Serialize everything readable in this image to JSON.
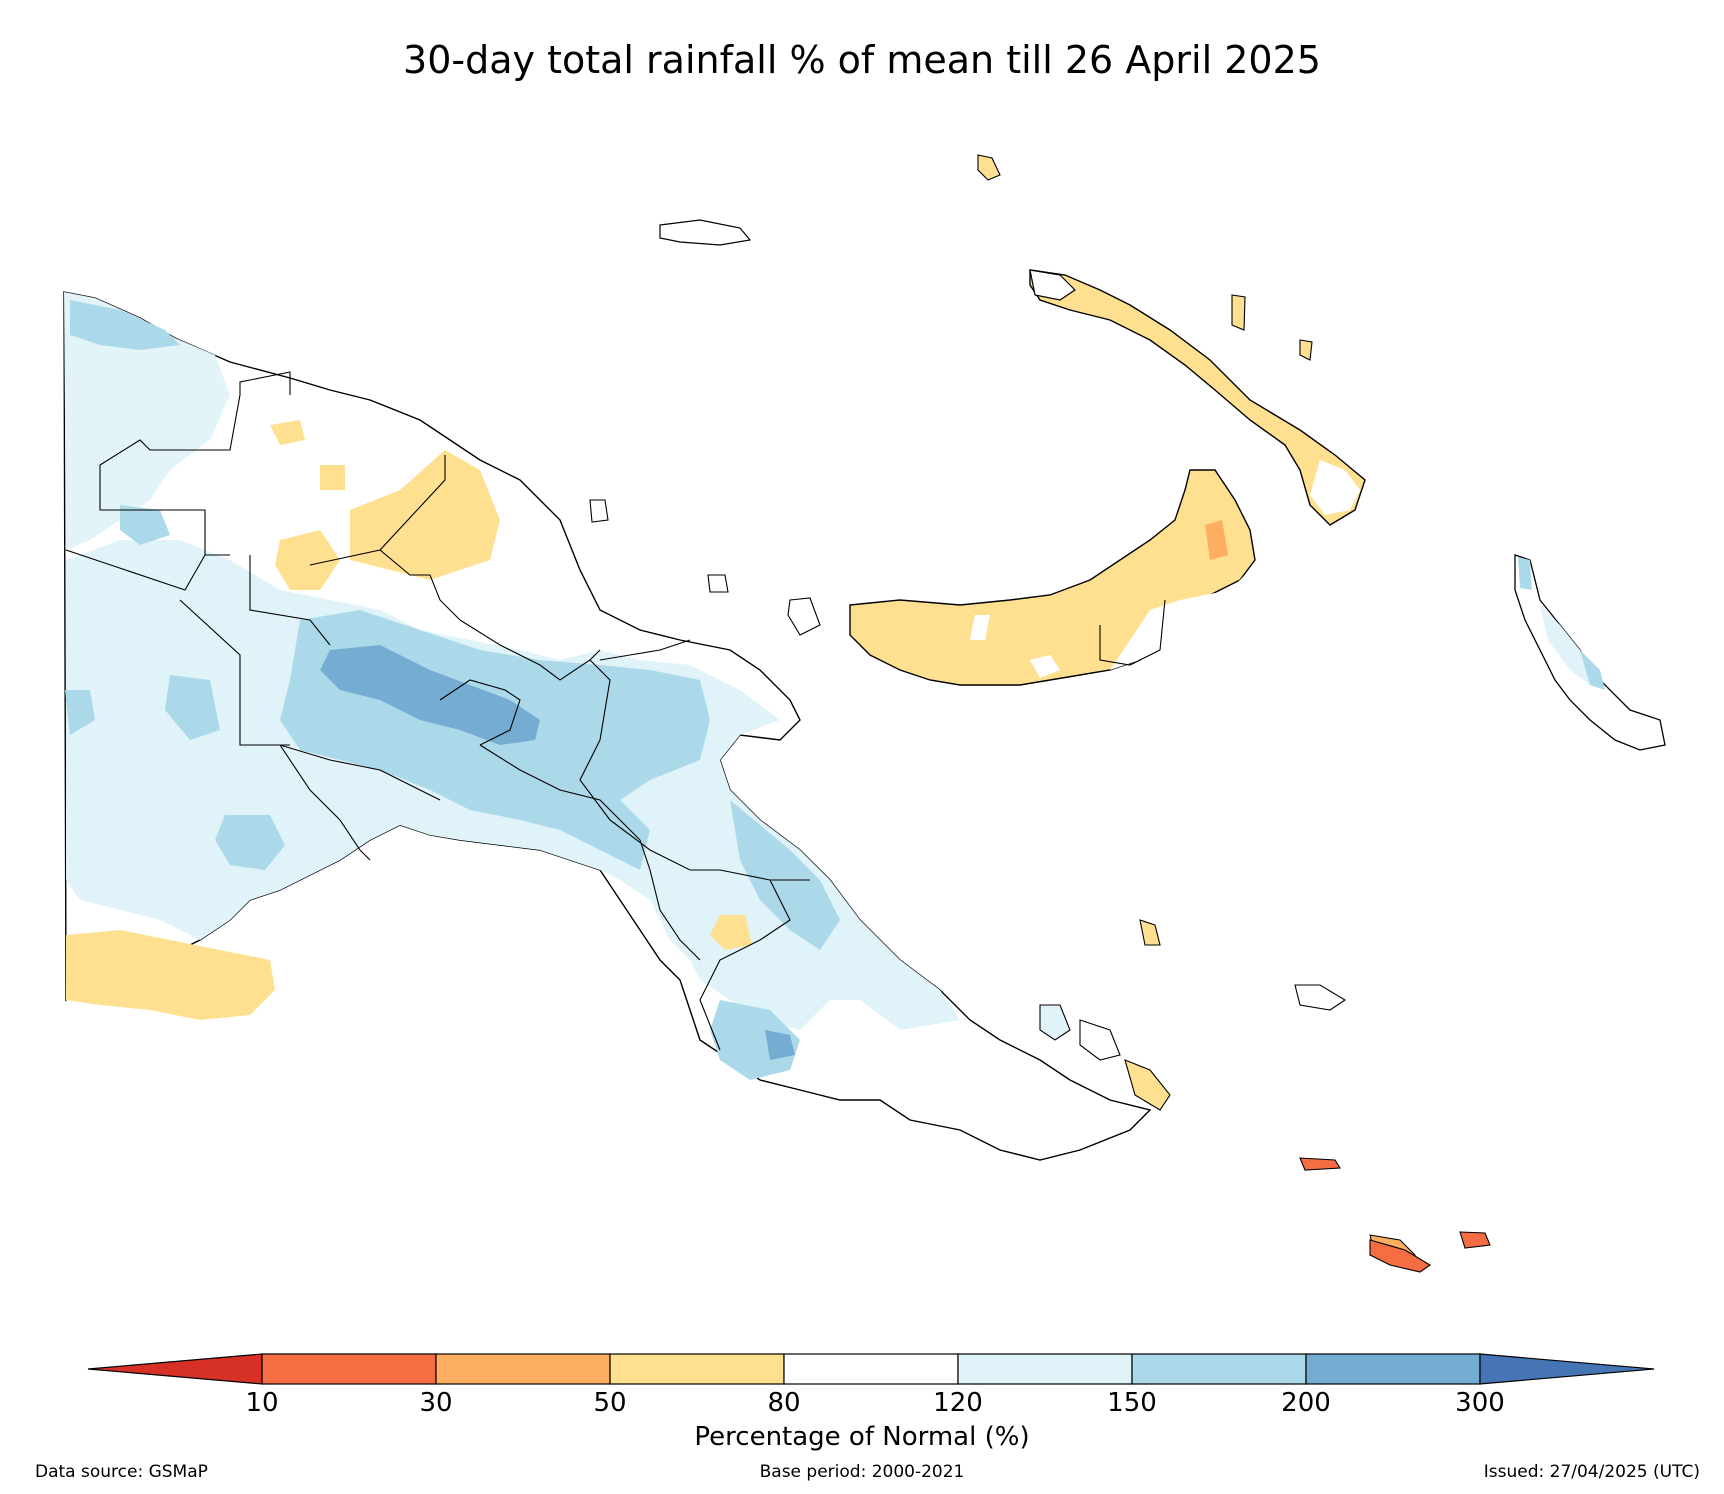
{
  "title": "30-day total rainfall % of mean till 26 April 2025",
  "colorbar": {
    "title": "Percentage of Normal (%)",
    "ticks": [
      "10",
      "30",
      "50",
      "80",
      "120",
      "150",
      "200",
      "300"
    ],
    "colors": {
      "below_10": "#d73027",
      "10_30": "#f46d43",
      "30_50": "#fdae61",
      "50_80": "#fee090",
      "80_120": "#ffffff",
      "120_150": "#e0f3f8",
      "150_200": "#abd9e9",
      "200_300": "#74add1",
      "above_300": "#4575b4"
    }
  },
  "footer": {
    "source": "Data source: GSMaP",
    "base_period": "Base period: 2000-2021",
    "issued": "Issued: 27/04/2025 (UTC)"
  }
}
